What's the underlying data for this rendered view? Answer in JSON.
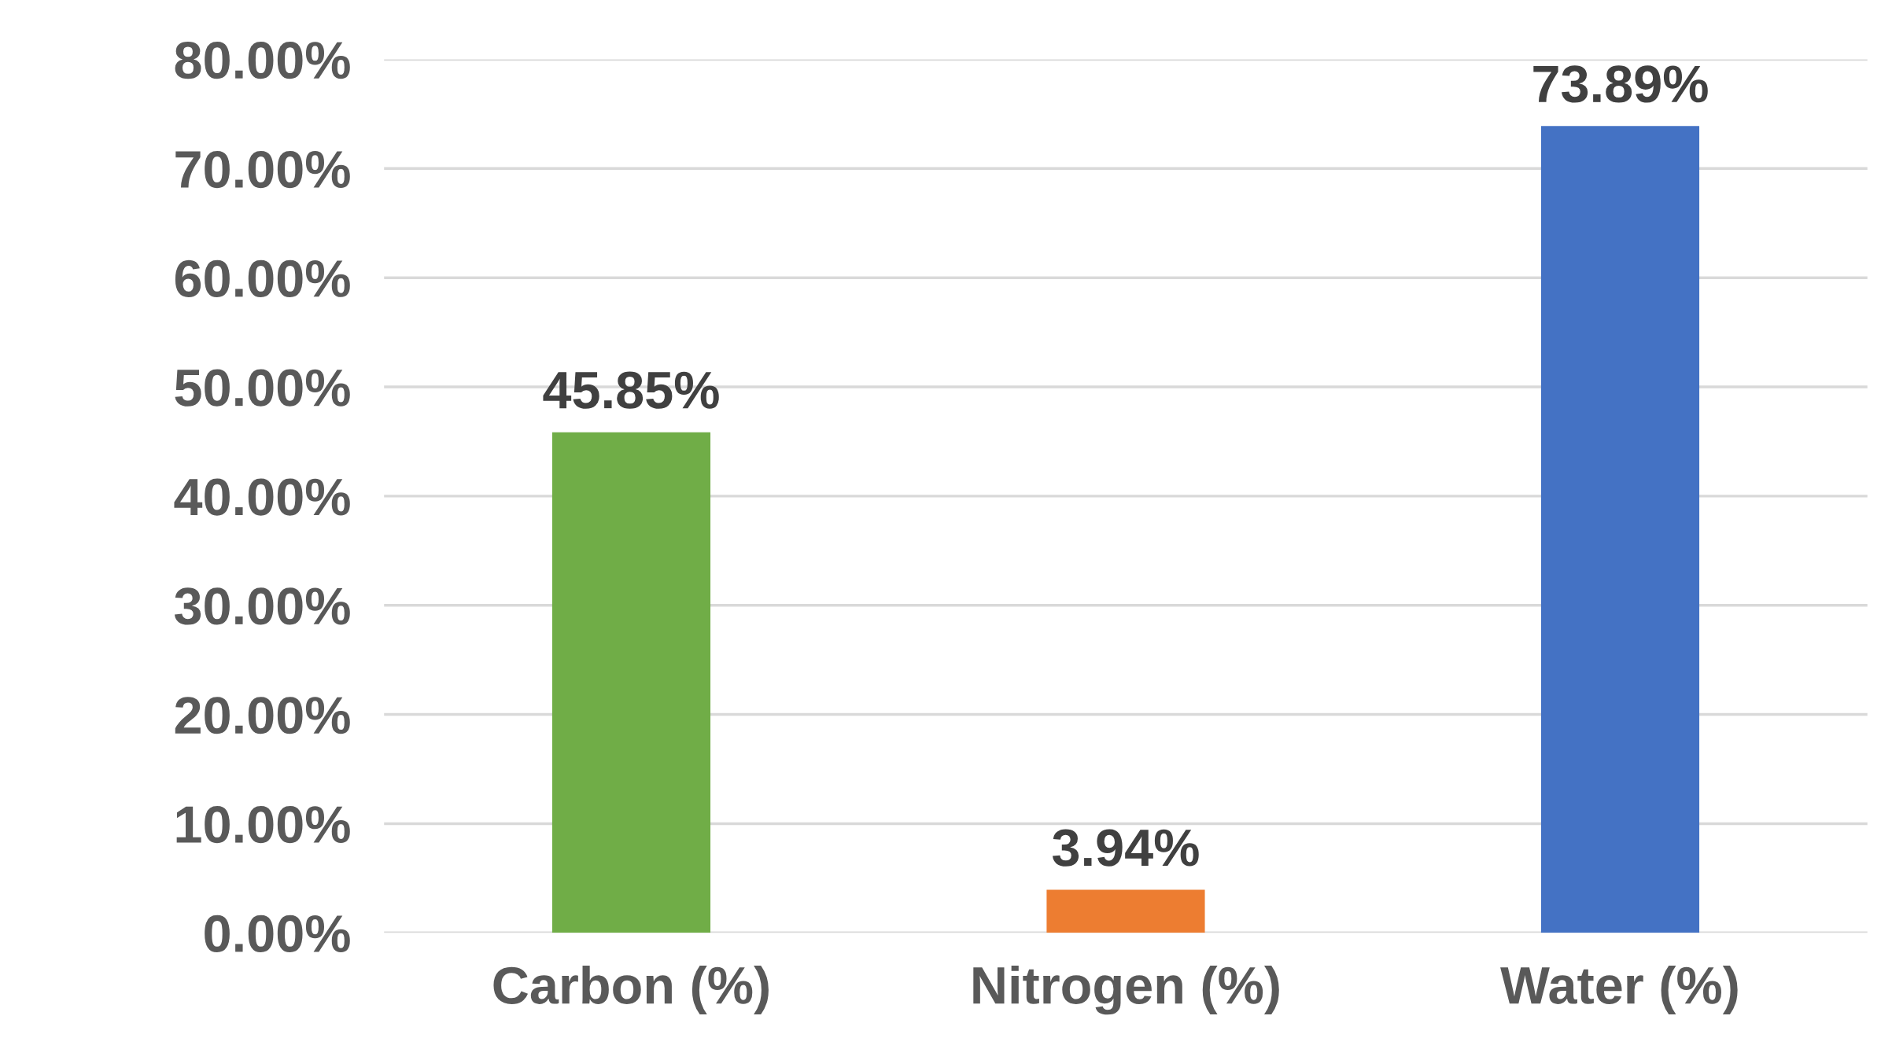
{
  "chart_data": {
    "type": "bar",
    "categories": [
      "Carbon (%)",
      "Nitrogen (%)",
      "Water (%)"
    ],
    "values": [
      45.85,
      3.94,
      73.89
    ],
    "colors": [
      "#70ad47",
      "#ed7d31",
      "#4472c4"
    ],
    "value_labels": [
      "45.85%",
      "3.94%",
      "73.89%"
    ],
    "ylim": [
      0,
      80
    ],
    "yticks": [
      {
        "value": 0,
        "label": "0.00%"
      },
      {
        "value": 10,
        "label": "10.00%"
      },
      {
        "value": 20,
        "label": "20.00%"
      },
      {
        "value": 30,
        "label": "30.00%"
      },
      {
        "value": 40,
        "label": "40.00%"
      },
      {
        "value": 50,
        "label": "50.00%"
      },
      {
        "value": 60,
        "label": "60.00%"
      },
      {
        "value": 70,
        "label": "70.00%"
      },
      {
        "value": 80,
        "label": "80.00%"
      }
    ],
    "grid": "y",
    "legend": false
  }
}
